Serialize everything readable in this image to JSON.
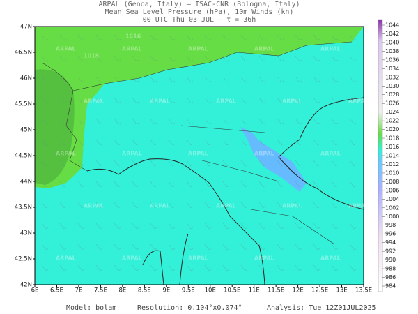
{
  "header": {
    "line1": "ARPAL (Genoa, Italy)  –  ISAC-CNR (Bologna, Italy)",
    "line2": "Mean Sea Level Pressure (hPa), 10m Winds (kn)",
    "line3": "00 UTC Thu 03 JUL  –  τ = 36h"
  },
  "axes": {
    "lon_labels": [
      "6E",
      "6.5E",
      "7E",
      "7.5E",
      "8E",
      "8.5E",
      "9E",
      "9.5E",
      "10E",
      "10.5E",
      "11E",
      "11.5E",
      "12E",
      "12.5E",
      "13E",
      "13.5E"
    ],
    "lat_labels": [
      "47N",
      "46.5N",
      "46N",
      "45.5N",
      "45N",
      "44.5N",
      "44N",
      "43.5N",
      "43N",
      "42.5N",
      "42N"
    ]
  },
  "colorbar": {
    "labels": [
      1044,
      1042,
      1040,
      1038,
      1036,
      1034,
      1032,
      1030,
      1028,
      1026,
      1024,
      1022,
      1020,
      1018,
      1016,
      1014,
      1012,
      1010,
      1008,
      1006,
      1004,
      1002,
      1000,
      998,
      996,
      994,
      992,
      990,
      988,
      986,
      984
    ]
  },
  "map": {
    "watermark": "ARPAL",
    "isobar_labels": [
      "1016",
      "1018"
    ]
  },
  "footer": {
    "model": "Model: bolam",
    "resolution": "Resolution: 0.104°x0.074°",
    "analysis": "Analysis: Tue 12Z01JUL2025"
  }
}
